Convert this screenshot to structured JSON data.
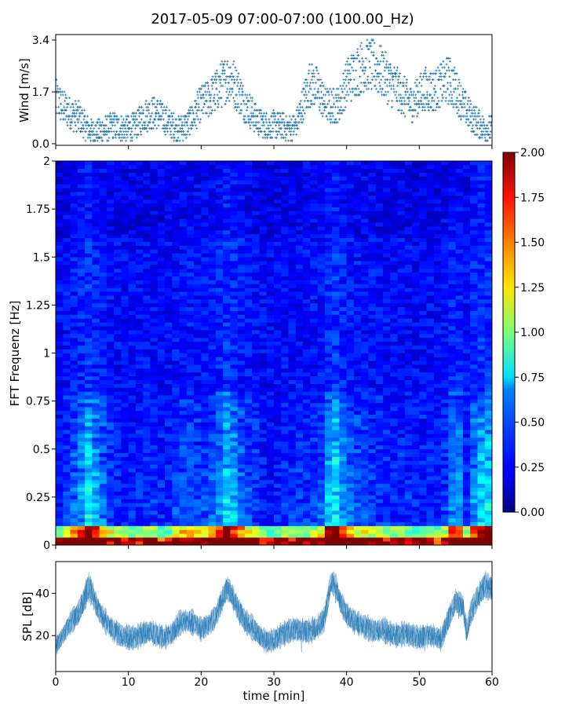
{
  "figure": {
    "title": "2017-05-09 07:00-07:00 (100.00_Hz)"
  },
  "chart_data": [
    {
      "type": "scatter",
      "panel": "wind",
      "ylabel": "Wind [m/s]",
      "ylim": [
        0.0,
        3.4
      ],
      "yticks": [
        "0.0",
        "1.7",
        "3.4"
      ],
      "xlim": [
        0,
        60
      ],
      "color": "#1f77b4",
      "marker": "+",
      "trend": {
        "x": [
          0,
          1,
          2,
          3,
          4,
          5,
          6,
          7,
          8,
          9,
          10,
          11,
          12,
          13,
          14,
          15,
          16,
          17,
          18,
          19,
          20,
          21,
          22,
          23,
          24,
          25,
          26,
          27,
          28,
          29,
          30,
          31,
          32,
          33,
          34,
          35,
          36,
          37,
          38,
          39,
          40,
          41,
          42,
          43,
          44,
          45,
          46,
          47,
          48,
          49,
          50,
          51,
          52,
          53,
          54,
          55,
          56,
          57,
          58,
          59,
          60
        ],
        "y": [
          1.5,
          1.2,
          1.0,
          0.9,
          0.6,
          0.4,
          0.4,
          0.5,
          0.6,
          0.5,
          0.5,
          0.6,
          0.9,
          1.0,
          1.0,
          0.8,
          0.6,
          0.5,
          0.6,
          0.9,
          1.3,
          1.5,
          1.7,
          2.0,
          2.2,
          1.8,
          1.3,
          1.0,
          0.7,
          0.6,
          0.6,
          0.6,
          0.5,
          0.6,
          1.3,
          2.0,
          1.8,
          1.3,
          1.2,
          1.3,
          2.0,
          2.3,
          2.5,
          2.6,
          2.5,
          2.3,
          2.0,
          1.8,
          1.5,
          1.3,
          1.6,
          1.8,
          1.7,
          1.9,
          2.1,
          1.8,
          1.3,
          0.9,
          0.7,
          0.5,
          0.5
        ]
      }
    },
    {
      "type": "heatmap",
      "panel": "spectrogram",
      "ylabel": "FFT Frequenz [Hz]",
      "ylim": [
        0,
        2
      ],
      "yticks": [
        "0",
        "0.25",
        "0.5",
        "0.75",
        "1",
        "1.25",
        "1.5",
        "1.75",
        "2"
      ],
      "xlim": [
        0,
        60
      ],
      "colormap": "jet",
      "colorbar": {
        "range": [
          0.0,
          2.0
        ],
        "ticks": [
          "0.00",
          "0.25",
          "0.50",
          "0.75",
          "1.00",
          "1.25",
          "1.50",
          "1.75",
          "2.00"
        ]
      }
    },
    {
      "type": "area",
      "panel": "spl",
      "ylabel": "SPL [dB]",
      "xlabel": "time [min]",
      "yticks": [
        "20",
        "40"
      ],
      "ylim": [
        3,
        55
      ],
      "xlim": [
        0,
        60
      ],
      "xticks": [
        "0",
        "10",
        "20",
        "30",
        "40",
        "50",
        "60"
      ],
      "color": "#1f77b4",
      "x": [
        0,
        1,
        2,
        3,
        4,
        4.5,
        5,
        6,
        7,
        8,
        9,
        10,
        11,
        12,
        13,
        14,
        15,
        16,
        17,
        18,
        19,
        20,
        21,
        22,
        23,
        23.5,
        24,
        25,
        26,
        27,
        28,
        29,
        30,
        31,
        32,
        33,
        34,
        35,
        36,
        37,
        37.8,
        38.5,
        39,
        40,
        41,
        42,
        43,
        44,
        45,
        46,
        47,
        48,
        49,
        50,
        51,
        52,
        53,
        54,
        55,
        56,
        56.5,
        57,
        58,
        59,
        60
      ],
      "center": [
        15,
        20,
        26,
        30,
        38,
        43,
        40,
        31,
        26,
        22,
        20,
        19,
        19,
        21,
        22,
        20,
        19,
        21,
        26,
        27,
        26,
        23,
        25,
        29,
        38,
        42,
        41,
        33,
        27,
        24,
        20,
        17,
        18,
        20,
        22,
        23,
        22,
        22,
        24,
        28,
        45,
        44,
        37,
        30,
        27,
        25,
        23,
        22,
        23,
        21,
        20,
        21,
        20,
        19,
        20,
        20,
        18,
        28,
        36,
        34,
        22,
        30,
        38,
        44,
        42
      ],
      "spread": [
        4,
        4,
        5,
        5,
        6,
        6,
        6,
        5,
        5,
        5,
        5,
        5,
        5,
        5,
        5,
        5,
        5,
        5,
        5,
        5,
        5,
        5,
        5,
        5,
        5,
        5,
        5,
        5,
        5,
        5,
        5,
        5,
        5,
        5,
        5,
        5,
        5,
        5,
        5,
        5,
        5,
        5,
        5,
        5,
        5,
        5,
        5,
        5,
        5,
        5,
        5,
        5,
        5,
        5,
        5,
        5,
        5,
        5,
        5,
        5,
        5,
        5,
        5,
        6,
        6
      ]
    }
  ]
}
